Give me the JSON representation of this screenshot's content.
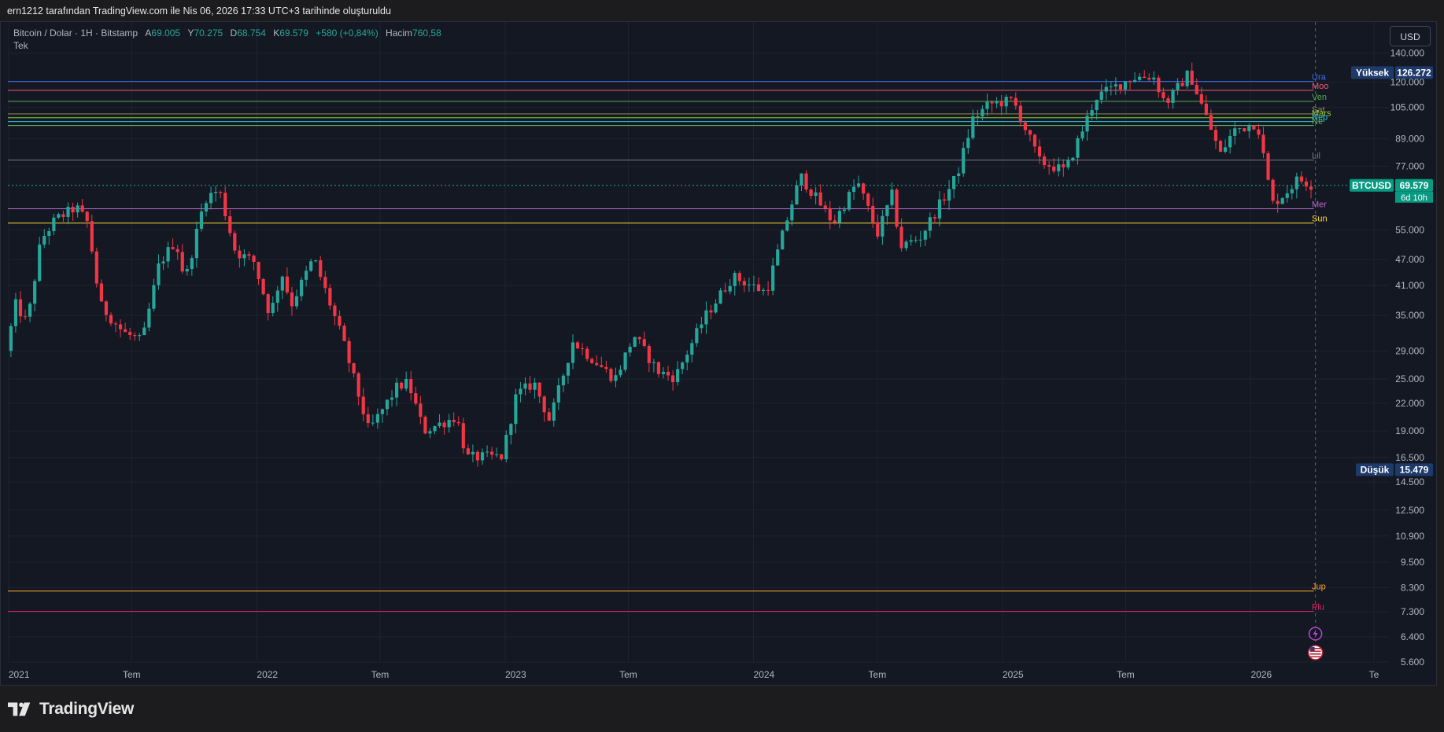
{
  "header": {
    "attribution": "ern1212 tarafından TradingView.com ile Nis 06, 2026 17:33 UTC+3 tarihinde oluşturuldu"
  },
  "legend": {
    "symbol": "Bitcoin / Dolar · 1H · Bitstamp",
    "open_label": "A",
    "open": "69.005",
    "high_label": "Y",
    "high": "70.275",
    "low_label": "D",
    "low": "68.754",
    "close_label": "K",
    "close": "69.579",
    "change": "+580 (+0,84%)",
    "volume_label": "Hacim",
    "volume": "760,58",
    "second_line": "Tek"
  },
  "currency_button": "USD",
  "brand": "TradingView",
  "colors": {
    "up": "#26a69a",
    "down": "#f23645",
    "background": "#141823",
    "grid": "#1f2330",
    "accent": "#2962ff"
  },
  "icons": [
    "lightning-icon",
    "us-flag-icon",
    "tradingview-logo-icon"
  ],
  "chart_data": {
    "type": "candlestick",
    "y_scale": "log",
    "ylim": [
      5600,
      165000
    ],
    "y_ticks": [
      "140.000",
      "120.000",
      "105.000",
      "89.000",
      "77.000",
      "55.000",
      "47.000",
      "41.000",
      "35.000",
      "29.000",
      "25.000",
      "22.000",
      "19.000",
      "16.500",
      "14.500",
      "12.500",
      "10.900",
      "9.500",
      "8.300",
      "7.300",
      "6.400",
      "5.600"
    ],
    "y_tick_values": [
      140000,
      120000,
      105000,
      89000,
      77000,
      55000,
      47000,
      41000,
      35000,
      29000,
      25000,
      22000,
      19000,
      16500,
      14500,
      12500,
      10900,
      9500,
      8300,
      7300,
      6400,
      5600
    ],
    "x_range": [
      "2020-12-31",
      "2026-07-23"
    ],
    "x_ticks": [
      {
        "label": "2021",
        "date": "2021-01-01"
      },
      {
        "label": "Tem",
        "date": "2021-07-01"
      },
      {
        "label": "2022",
        "date": "2022-01-01"
      },
      {
        "label": "Tem",
        "date": "2022-07-01"
      },
      {
        "label": "2023",
        "date": "2023-01-01"
      },
      {
        "label": "Tem",
        "date": "2023-07-01"
      },
      {
        "label": "2024",
        "date": "2024-01-01"
      },
      {
        "label": "Tem",
        "date": "2024-07-01"
      },
      {
        "label": "2025",
        "date": "2025-01-01"
      },
      {
        "label": "Tem",
        "date": "2025-07-01"
      },
      {
        "label": "2026",
        "date": "2026-01-01"
      },
      {
        "label": "Te",
        "date": "2026-07-01"
      }
    ],
    "current_date": "2026-04-06",
    "last_price": {
      "label": "BTCUSD",
      "value": "69.579",
      "countdown": "6d 10h",
      "price": 69579
    },
    "high_marker": {
      "label": "Yüksek",
      "value": "126.272",
      "price": 126272
    },
    "low_marker": {
      "label": "Düşük",
      "value": "15.479",
      "price": 15479
    },
    "trend_path": [
      [
        "2021-01-01",
        29000
      ],
      [
        "2021-01-15",
        37000
      ],
      [
        "2021-02-01",
        33500
      ],
      [
        "2021-02-21",
        52000
      ],
      [
        "2021-03-14",
        58000
      ],
      [
        "2021-04-14",
        62000
      ],
      [
        "2021-05-01",
        57000
      ],
      [
        "2021-05-19",
        37000
      ],
      [
        "2021-06-01",
        35000
      ],
      [
        "2021-06-22",
        32000
      ],
      [
        "2021-07-20",
        30500
      ],
      [
        "2021-08-14",
        46000
      ],
      [
        "2021-09-07",
        52000
      ],
      [
        "2021-09-21",
        42000
      ],
      [
        "2021-10-20",
        65000
      ],
      [
        "2021-11-10",
        68000
      ],
      [
        "2021-12-04",
        49000
      ],
      [
        "2021-12-31",
        46500
      ],
      [
        "2022-01-24",
        35000
      ],
      [
        "2022-02-10",
        44000
      ],
      [
        "2022-02-24",
        37000
      ],
      [
        "2022-03-29",
        47500
      ],
      [
        "2022-05-10",
        31000
      ],
      [
        "2022-06-18",
        19000
      ],
      [
        "2022-07-30",
        24000
      ],
      [
        "2022-08-15",
        24500
      ],
      [
        "2022-09-07",
        19000
      ],
      [
        "2022-10-25",
        20500
      ],
      [
        "2022-11-09",
        16500
      ],
      [
        "2022-12-31",
        16600
      ],
      [
        "2023-01-21",
        23000
      ],
      [
        "2023-02-16",
        24500
      ],
      [
        "2023-03-11",
        20000
      ],
      [
        "2023-04-14",
        30500
      ],
      [
        "2023-06-15",
        25000
      ],
      [
        "2023-07-13",
        31500
      ],
      [
        "2023-08-17",
        26000
      ],
      [
        "2023-09-11",
        25200
      ],
      [
        "2023-10-24",
        34500
      ],
      [
        "2023-12-05",
        43000
      ],
      [
        "2024-01-23",
        39500
      ],
      [
        "2024-02-28",
        62000
      ],
      [
        "2024-03-14",
        73000
      ],
      [
        "2024-05-01",
        57000
      ],
      [
        "2024-06-05",
        71000
      ],
      [
        "2024-07-05",
        54000
      ],
      [
        "2024-07-29",
        68000
      ],
      [
        "2024-08-05",
        50000
      ],
      [
        "2024-09-06",
        53000
      ],
      [
        "2024-10-29",
        73000
      ],
      [
        "2024-11-22",
        99000
      ],
      [
        "2024-12-17",
        107000
      ],
      [
        "2025-01-20",
        109000
      ],
      [
        "2025-02-28",
        79000
      ],
      [
        "2025-04-07",
        75000
      ],
      [
        "2025-05-22",
        111000
      ],
      [
        "2025-07-14",
        123000
      ],
      [
        "2025-08-14",
        124000
      ],
      [
        "2025-09-01",
        107000
      ],
      [
        "2025-10-06",
        126272
      ],
      [
        "2025-11-21",
        82000
      ],
      [
        "2025-12-10",
        93000
      ],
      [
        "2026-01-14",
        97000
      ],
      [
        "2026-02-05",
        63000
      ],
      [
        "2026-02-25",
        67000
      ],
      [
        "2026-03-15",
        72000
      ],
      [
        "2026-04-06",
        69579
      ]
    ],
    "horizontal_levels": [
      {
        "name": "Ura",
        "price": 120500,
        "color": "#3a6df0"
      },
      {
        "name": "Moo",
        "price": 115000,
        "color": "#ef5d7a"
      },
      {
        "name": "Ven",
        "price": 108500,
        "color": "#4caf50"
      },
      {
        "name": "Sat",
        "price": 101500,
        "color": "#8d8d5a"
      },
      {
        "name": "Mars",
        "price": 99500,
        "color": "#9acd32"
      },
      {
        "name": "Nep",
        "price": 97500,
        "color": "#26c6da"
      },
      {
        "name": "Ne",
        "price": 95500,
        "color": "#66bb6a"
      },
      {
        "name": "Lil",
        "price": 79500,
        "color": "#787b86"
      },
      {
        "name": "Mer",
        "price": 61500,
        "color": "#ba68c8"
      },
      {
        "name": "Sun",
        "price": 57000,
        "color": "#fdd835"
      },
      {
        "name": "Jup",
        "price": 8150,
        "color": "#ffa726"
      },
      {
        "name": "Plu",
        "price": 7320,
        "color": "#e91e63"
      }
    ]
  }
}
